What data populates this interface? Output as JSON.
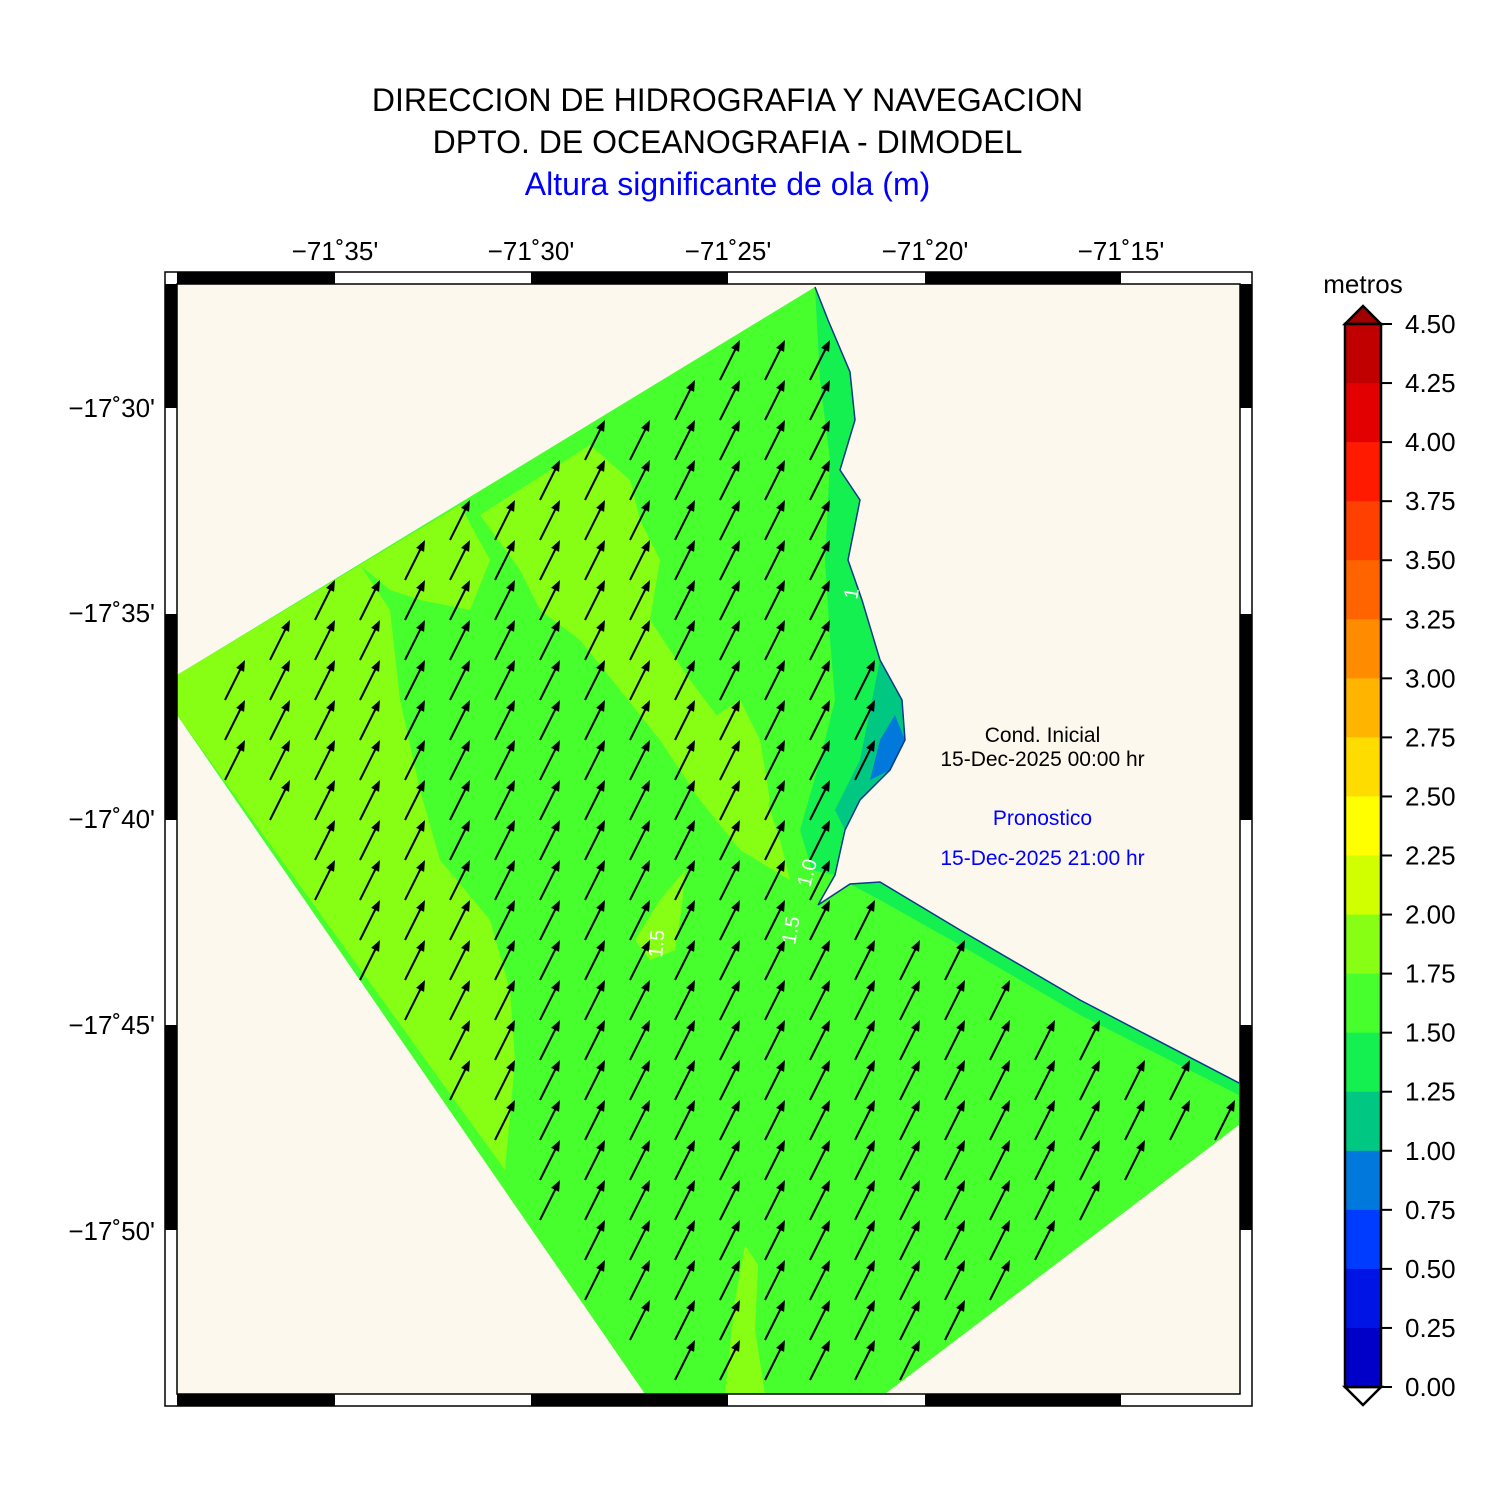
{
  "header": {
    "line1": "DIRECCION DE HIDROGRAFIA Y NAVEGACION",
    "line2": "DPTO. DE OCEANOGRAFIA - DIMODEL",
    "line3": "Altura significante de ola (m)"
  },
  "axes": {
    "lon_ticks": [
      "−71˚35'",
      "−71˚30'",
      "−71˚25'",
      "−71˚20'",
      "−71˚15'"
    ],
    "lat_ticks": [
      "−17˚30'",
      "−17˚35'",
      "−17˚40'",
      "−17˚45'",
      "−17˚50'"
    ]
  },
  "legend": {
    "unit": "metros",
    "ticks": [
      "4.50",
      "4.25",
      "4.00",
      "3.75",
      "3.50",
      "3.25",
      "3.00",
      "2.75",
      "2.50",
      "2.25",
      "2.00",
      "1.75",
      "1.50",
      "1.25",
      "1.00",
      "0.75",
      "0.50",
      "0.25",
      "0.00"
    ],
    "colors": [
      "#c00000",
      "#e20000",
      "#ff1a00",
      "#ff4000",
      "#ff6400",
      "#ff8c00",
      "#ffb400",
      "#ffdc00",
      "#ffff00",
      "#d2ff00",
      "#87ff14",
      "#46ff2d",
      "#14f050",
      "#00c882",
      "#0078dc",
      "#003cff",
      "#0014e6",
      "#0000c8"
    ]
  },
  "info": {
    "initial_label": "Cond. Inicial",
    "initial_date": "15-Dec-2025 00:00 hr",
    "forecast_label": "Pronostico",
    "forecast_date": "15-Dec-2025 21:00 hr"
  },
  "map": {
    "land_color": "#fdf8ee",
    "contour_labels": [
      "1.5",
      "1.5",
      "1.0",
      "1"
    ],
    "wave_direction": "NNE"
  }
}
